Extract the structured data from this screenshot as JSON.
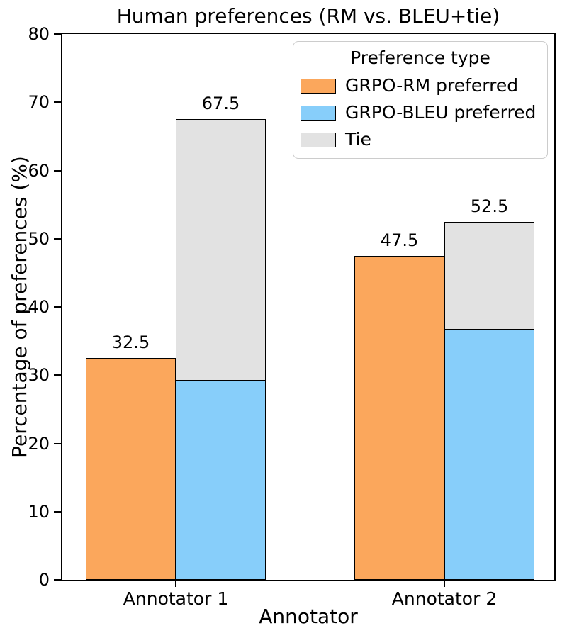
{
  "chart_data": {
    "type": "bar",
    "title": "Human preferences (RM vs. BLEU+tie)",
    "xlabel": "Annotator",
    "ylabel": "Percentage of preferences (%)",
    "ylim": [
      0,
      80
    ],
    "yticks": [
      0,
      10,
      20,
      30,
      40,
      50,
      60,
      70,
      80
    ],
    "categories": [
      "Annotator 1",
      "Annotator 2"
    ],
    "grid": false,
    "legend_title": "Preference type",
    "legend_position": "upper right",
    "bar_arrangement": "series 0 is its own bar; series 1 and 2 are stacked into the adjacent bar (BLEU+tie)",
    "series": [
      {
        "name": "GRPO-RM preferred",
        "color": "#FBA75C",
        "edge_color": "#000000",
        "values": [
          32.5,
          47.5
        ],
        "bar_labels": [
          "32.5",
          "47.5"
        ]
      },
      {
        "name": "GRPO-BLEU preferred",
        "color": "#87CEFA",
        "edge_color": "#000000",
        "values": [
          29.2,
          36.7
        ]
      },
      {
        "name": "Tie",
        "color": "#E2E2E2",
        "edge_color": "#000000",
        "values": [
          38.3,
          15.8
        ]
      }
    ],
    "stacked_totals_labels": [
      "67.5",
      "52.5"
    ]
  }
}
